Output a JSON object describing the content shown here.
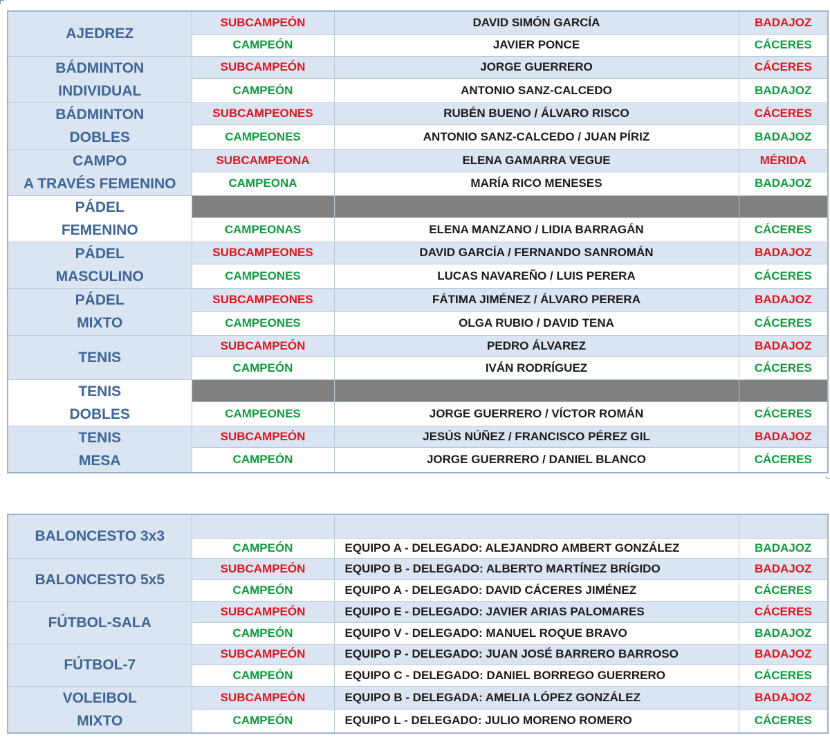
{
  "individual_table": [
    {
      "sport": [
        "AJEDREZ"
      ],
      "rows": [
        {
          "result": "SUBCAMPEÓN",
          "result_color": "red",
          "name": "DAVID SIMÓN GARCÍA",
          "city": "BADAJOZ",
          "city_color": "red",
          "band": "blue"
        },
        {
          "result": "CAMPEÓN",
          "result_color": "green",
          "name": "JAVIER PONCE",
          "city": "CÁCERES",
          "city_color": "green",
          "band": "white"
        }
      ]
    },
    {
      "sport": [
        "BÁDMINTON",
        "INDIVIDUAL"
      ],
      "rows": [
        {
          "result": "SUBCAMPEÓN",
          "result_color": "red",
          "name": "JORGE GUERRERO",
          "city": "CÁCERES",
          "city_color": "red",
          "band": "blue"
        },
        {
          "result": "CAMPEÓN",
          "result_color": "green",
          "name": "ANTONIO SANZ-CALCEDO",
          "city": "BADAJOZ",
          "city_color": "green",
          "band": "white"
        }
      ]
    },
    {
      "sport": [
        "BÁDMINTON",
        "DOBLES"
      ],
      "rows": [
        {
          "result": "SUBCAMPEONES",
          "result_color": "red",
          "name": "RUBÉN BUENO / ÁLVARO RISCO",
          "city": "CÁCERES",
          "city_color": "red",
          "band": "blue"
        },
        {
          "result": "CAMPEONES",
          "result_color": "green",
          "name": "ANTONIO SANZ-CALCEDO / JUAN PÍRIZ",
          "city": "BADAJOZ",
          "city_color": "green",
          "band": "white"
        }
      ]
    },
    {
      "sport": [
        "CAMPO",
        "A TRAVÉS FEMENINO"
      ],
      "rows": [
        {
          "result": "SUBCAMPEONA",
          "result_color": "red",
          "name": "ELENA GAMARRA VEGUE",
          "city": "MÉRIDA",
          "city_color": "red",
          "band": "blue"
        },
        {
          "result": "CAMPEONA",
          "result_color": "green",
          "name": "MARÍA RICO MENESES",
          "city": "BADAJOZ",
          "city_color": "green",
          "band": "white"
        }
      ]
    },
    {
      "sport": [
        "PÁDEL",
        "FEMENINO"
      ],
      "sport_band": "white",
      "rows": [
        {
          "result": "",
          "result_color": "red",
          "name": "",
          "city": "",
          "city_color": "red",
          "band": "gray"
        },
        {
          "result": "CAMPEONAS",
          "result_color": "green",
          "name": "ELENA MANZANO / LIDIA BARRAGÁN",
          "city": "CÁCERES",
          "city_color": "green",
          "band": "white"
        }
      ]
    },
    {
      "sport": [
        "PÁDEL",
        "MASCULINO"
      ],
      "rows": [
        {
          "result": "SUBCAMPEONES",
          "result_color": "red",
          "name": "DAVID GARCÍA / FERNANDO SANROMÁN",
          "city": "BADAJOZ",
          "city_color": "red",
          "band": "blue"
        },
        {
          "result": "CAMPEONES",
          "result_color": "green",
          "name": "LUCAS NAVAREÑO / LUIS PERERA",
          "city": "CÁCERES",
          "city_color": "green",
          "band": "white"
        }
      ]
    },
    {
      "sport": [
        "PÁDEL",
        "MIXTO"
      ],
      "rows": [
        {
          "result": "SUBCAMPEONES",
          "result_color": "red",
          "name": "FÁTIMA JIMÉNEZ / ÁLVARO PERERA",
          "city": "BADAJOZ",
          "city_color": "red",
          "band": "blue"
        },
        {
          "result": "CAMPEONES",
          "result_color": "green",
          "name": "OLGA RUBIO / DAVID TENA",
          "city": "CÁCERES",
          "city_color": "green",
          "band": "white"
        }
      ]
    },
    {
      "sport": [
        "TENIS"
      ],
      "rows": [
        {
          "result": "SUBCAMPEÓN",
          "result_color": "red",
          "name": "PEDRO ÁLVAREZ",
          "city": "BADAJOZ",
          "city_color": "red",
          "band": "blue"
        },
        {
          "result": "CAMPEÓN",
          "result_color": "green",
          "name": "IVÁN RODRÍGUEZ",
          "city": "CÁCERES",
          "city_color": "green",
          "band": "white"
        }
      ]
    },
    {
      "sport": [
        "TENIS",
        "DOBLES"
      ],
      "sport_band": "white",
      "rows": [
        {
          "result": "",
          "result_color": "red",
          "name": "",
          "city": "",
          "city_color": "red",
          "band": "gray"
        },
        {
          "result": "CAMPEONES",
          "result_color": "green",
          "name": "JORGE GUERRERO  / VÍCTOR ROMÁN",
          "city": "CÁCERES",
          "city_color": "green",
          "band": "white"
        }
      ]
    },
    {
      "sport": [
        "TENIS",
        "MESA"
      ],
      "rows": [
        {
          "result": "SUBCAMPEÓN",
          "result_color": "red",
          "name": "JESÚS NÚÑEZ / FRANCISCO PÉREZ GIL",
          "city": "BADAJOZ",
          "city_color": "red",
          "band": "blue"
        },
        {
          "result": "CAMPEÓN",
          "result_color": "green",
          "name": "JORGE GUERRERO  / DANIEL BLANCO",
          "city": "CÁCERES",
          "city_color": "green",
          "band": "white"
        }
      ]
    }
  ],
  "team_table": [
    {
      "sport": [
        "BALONCESTO 3x3"
      ],
      "rows": [
        {
          "result": "",
          "result_color": "red",
          "name": "",
          "city": "",
          "city_color": "red",
          "band": "blue"
        },
        {
          "result": "CAMPEÓN",
          "result_color": "green",
          "name": "EQUIPO A - DELEGADO:  ALEJANDRO  AMBERT  GONZÁLEZ",
          "city": "BADAJOZ",
          "city_color": "green",
          "band": "white"
        }
      ]
    },
    {
      "sport": [
        "BALONCESTO 5x5"
      ],
      "rows": [
        {
          "result": "SUBCAMPEÓN",
          "result_color": "red",
          "name": "EQUIPO B - DELEGADO:  ALBERTO  MARTÍNEZ  BRÍGIDO",
          "city": "BADAJOZ",
          "city_color": "red",
          "band": "blue"
        },
        {
          "result": "CAMPEÓN",
          "result_color": "green",
          "name": "EQUIPO A - DELEGADO:  DAVID CÁCERES  JIMÉNEZ",
          "city": "CÁCERES",
          "city_color": "green",
          "band": "white"
        }
      ]
    },
    {
      "sport": [
        "FÚTBOL-SALA"
      ],
      "rows": [
        {
          "result": "SUBCAMPEÓN",
          "result_color": "red",
          "name": "EQUIPO E - DELEGADO: JAVIER ARIAS PALOMARES",
          "city": "CÁCERES",
          "city_color": "red",
          "band": "blue"
        },
        {
          "result": "CAMPEÓN",
          "result_color": "green",
          "name": "EQUIPO V - DELEGADO:  MANUEL  ROQUE  BRAVO",
          "city": "BADAJOZ",
          "city_color": "green",
          "band": "white"
        }
      ]
    },
    {
      "sport": [
        "FÚTBOL-7"
      ],
      "rows": [
        {
          "result": "SUBCAMPEÓN",
          "result_color": "red",
          "name": "EQUIPO P - DELEGADO:  JUAN JOSÉ  BARRERO  BARROSO",
          "city": "BADAJOZ",
          "city_color": "red",
          "band": "blue"
        },
        {
          "result": "CAMPEÓN",
          "result_color": "green",
          "name": "EQUIPO C - DELEGADO:  DANIEL BORREGO  GUERRERO",
          "city": "CÁCERES",
          "city_color": "green",
          "band": "white"
        }
      ]
    },
    {
      "sport": [
        "VOLEIBOL",
        "MIXTO"
      ],
      "rows": [
        {
          "result": "SUBCAMPEÓN",
          "result_color": "red",
          "name": "EQUIPO B - DELEGADA:  AMELIA  LÓPEZ  GONZÁLEZ",
          "city": "BADAJOZ",
          "city_color": "red",
          "band": "blue"
        },
        {
          "result": "CAMPEÓN",
          "result_color": "green",
          "name": "EQUIPO L - DELEGADO:  JULIO  MORENO  ROMERO",
          "city": "CÁCERES",
          "city_color": "green",
          "band": "white"
        }
      ]
    }
  ],
  "colors": {
    "red": "#e0141e",
    "green": "#0f9b3c",
    "sport_text": "#3d6596",
    "band_blue": "#dae5f1",
    "band_gray": "#808080"
  }
}
